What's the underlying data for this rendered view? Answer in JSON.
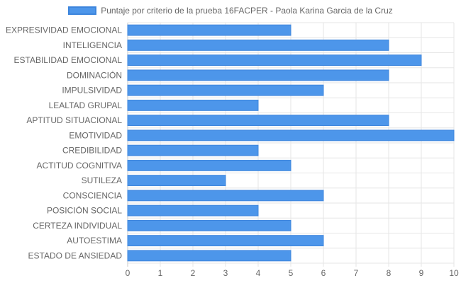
{
  "chart_data": {
    "type": "bar",
    "orientation": "horizontal",
    "title": "",
    "legend": {
      "position": "top",
      "entries": [
        "Puntaje por criterio de la prueba 16FACPER - Paola Karina Garcia de la Cruz"
      ]
    },
    "categories": [
      "EXPRESIVIDAD EMOCIONAL",
      "INTELIGENCIA",
      "ESTABILIDAD EMOCIONAL",
      "DOMINACIÓN",
      "IMPULSIVIDAD",
      "LEALTAD GRUPAL",
      "APTITUD SITUACIONAL",
      "EMOTIVIDAD",
      "CREDIBILIDAD",
      "ACTITUD COGNITIVA",
      "SUTILEZA",
      "CONSCIENCIA",
      "POSICIÓN SOCIAL",
      "CERTEZA INDIVIDUAL",
      "AUTOESTIMA",
      "ESTADO DE ANSIEDAD"
    ],
    "series": [
      {
        "name": "Puntaje por criterio de la prueba 16FACPER - Paola Karina Garcia de la Cruz",
        "values": [
          5,
          8,
          9,
          8,
          6,
          4,
          8,
          10,
          4,
          5,
          3,
          6,
          4,
          5,
          6,
          5
        ]
      }
    ],
    "x_ticks": [
      "0",
      "1",
      "2",
      "3",
      "4",
      "5",
      "6",
      "7",
      "8",
      "9",
      "10"
    ],
    "xlim": [
      0,
      10
    ],
    "grid": true,
    "colors": {
      "bar_fill": "#4d96ea",
      "bar_border": "#3d85dc",
      "grid": "#e6e6e6",
      "text": "#666666"
    }
  }
}
